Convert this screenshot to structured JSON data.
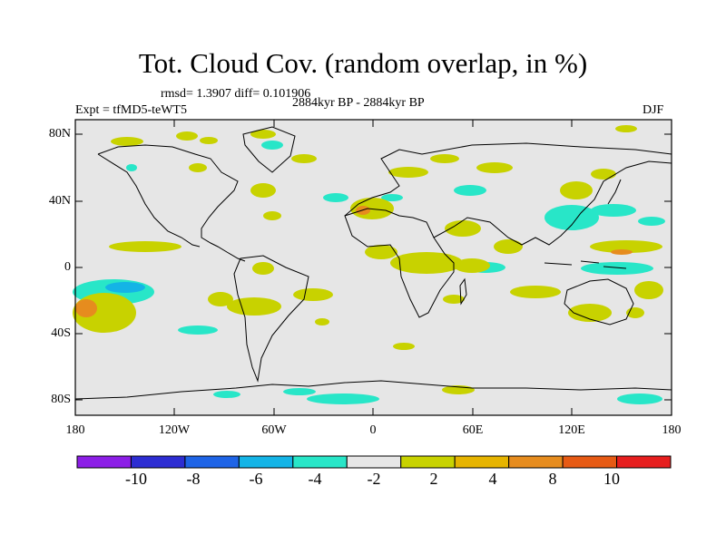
{
  "title": "Tot. Cloud Cov. (random overlap, in %)",
  "stats": "rmsd= 1.3907 diff= 0.101906",
  "experiment": "Expt = tfMD5-teWT5",
  "period": "2884kyr BP - 2884kyr BP",
  "season": "DJF",
  "map": {
    "projection": "cylindrical equidistant",
    "lon_range": [
      -180,
      180
    ],
    "lat_range": [
      -90,
      90
    ],
    "background_color": "#e6e6e6",
    "lat_ticks": [
      "80N",
      "40N",
      "0",
      "40S",
      "80S"
    ],
    "lon_ticks": [
      "180",
      "120W",
      "60W",
      "0",
      "60E",
      "120E",
      "180"
    ]
  },
  "colorbar": {
    "colors": [
      "#8c1ee6",
      "#2d2dd2",
      "#1e64e6",
      "#14b4e6",
      "#28e6c8",
      "#e6e6e6",
      "#c8d200",
      "#e6b400",
      "#e68c1e",
      "#e65a14",
      "#e61e1e"
    ],
    "labels": [
      "-10",
      "-8",
      "-6",
      "-4",
      "-2",
      "2",
      "4",
      "8",
      "10"
    ]
  }
}
